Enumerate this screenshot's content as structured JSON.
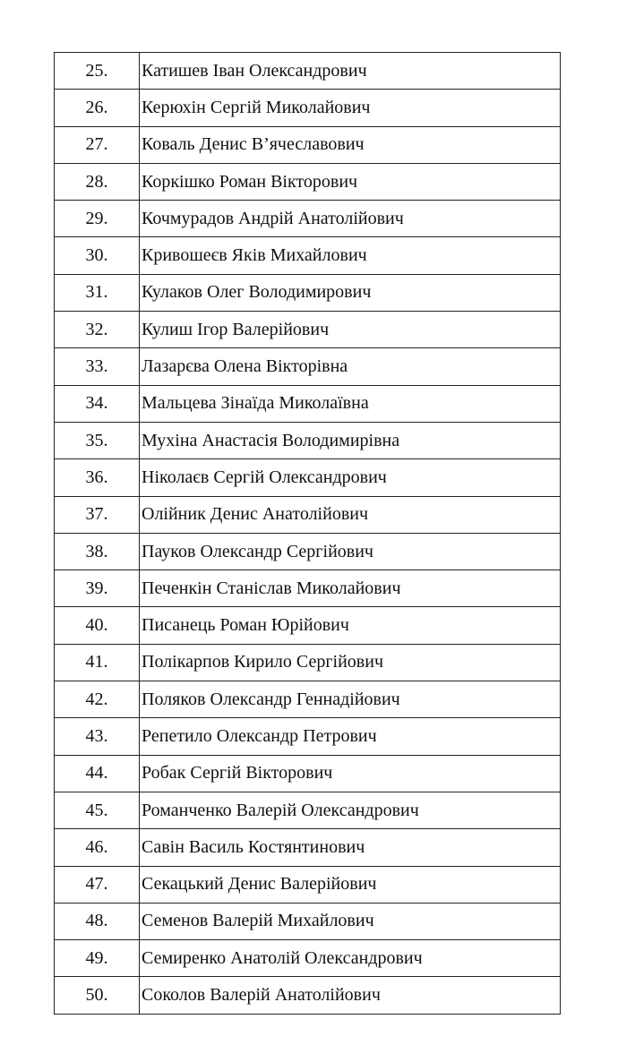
{
  "rows": [
    {
      "num": "25.",
      "name": "Катишев Іван Олександрович"
    },
    {
      "num": "26.",
      "name": "Керюхін Сергій Миколайович"
    },
    {
      "num": "27.",
      "name": "Коваль Денис В’ячеславович"
    },
    {
      "num": "28.",
      "name": "Коркішко Роман Вікторович"
    },
    {
      "num": "29.",
      "name": "Кочмурадов Андрій Анатолійович"
    },
    {
      "num": "30.",
      "name": "Кривошеєв Яків Михайлович"
    },
    {
      "num": "31.",
      "name": "Кулаков Олег Володимирович"
    },
    {
      "num": "32.",
      "name": "Кулиш Ігор Валерійович"
    },
    {
      "num": "33.",
      "name": "Лазарєва Олена Вікторівна"
    },
    {
      "num": "34.",
      "name": "Мальцева Зінаїда Миколаївна"
    },
    {
      "num": "35.",
      "name": "Мухіна Анастасія Володимирівна"
    },
    {
      "num": "36.",
      "name": "Ніколаєв Сергій Олександрович"
    },
    {
      "num": "37.",
      "name": "Олійник Денис Анатолійович"
    },
    {
      "num": "38.",
      "name": "Пауков Олександр Сергійович"
    },
    {
      "num": "39.",
      "name": "Печенкін Станіслав Миколайович"
    },
    {
      "num": "40.",
      "name": "Писанець Роман Юрійович"
    },
    {
      "num": "41.",
      "name": "Полікарпов Кирило Сергійович"
    },
    {
      "num": "42.",
      "name": "Поляков Олександр Геннадійович"
    },
    {
      "num": "43.",
      "name": "Репетило Олександр Петрович"
    },
    {
      "num": "44.",
      "name": "Робак Сергій Вікторович"
    },
    {
      "num": "45.",
      "name": "Романченко Валерій Олександрович"
    },
    {
      "num": "46.",
      "name": "Савін Василь Костянтинович"
    },
    {
      "num": "47.",
      "name": "Секацький Денис Валерійович"
    },
    {
      "num": "48.",
      "name": "Семенов Валерій Михайлович"
    },
    {
      "num": "49.",
      "name": "Семиренко Анатолій Олександрович"
    },
    {
      "num": "50.",
      "name": "Соколов Валерій Анатолійович"
    }
  ]
}
